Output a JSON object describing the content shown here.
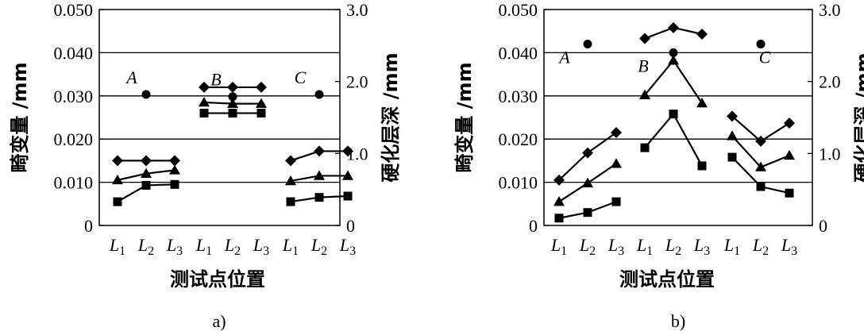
{
  "figure": {
    "chart_data": [
      {
        "type": "line",
        "caption": "a)",
        "xlabel": "测试点位置",
        "ylabel_left": "畸变量 /mm",
        "ylabel_right": "硬化层深 /mm",
        "ylim_left": [
          0,
          0.05
        ],
        "ylim_right": [
          0,
          3.0
        ],
        "yticks_left": [
          "0",
          "0.010",
          "0.020",
          "0.030",
          "0.040",
          "0.050"
        ],
        "yticks_right": [
          "0",
          "1.0",
          "2.0",
          "3.0"
        ],
        "grid": "horizontal",
        "groups": [
          {
            "label": "A",
            "categories": [
              "L1",
              "L2",
              "L3"
            ]
          },
          {
            "label": "B",
            "categories": [
              "L1",
              "L2",
              "L3"
            ]
          },
          {
            "label": "C",
            "categories": [
              "L1",
              "L2",
              "L3"
            ]
          }
        ],
        "series": [
          {
            "marker": "diamond",
            "axis": "left",
            "values": [
              [
                0.015,
                0.015,
                0.015
              ],
              [
                0.032,
                0.032,
                0.032
              ],
              [
                0.015,
                0.0172,
                0.0172
              ]
            ]
          },
          {
            "marker": "triangle",
            "axis": "left",
            "values": [
              [
                0.0105,
                0.012,
                0.0128
              ],
              [
                0.0285,
                0.0282,
                0.0282
              ],
              [
                0.0103,
                0.0115,
                0.0115
              ]
            ]
          },
          {
            "marker": "square",
            "axis": "left",
            "values": [
              [
                0.0055,
                0.0093,
                0.0095
              ],
              [
                0.026,
                0.026,
                0.026
              ],
              [
                0.0055,
                0.0065,
                0.0068
              ]
            ]
          },
          {
            "marker": "circle",
            "axis": "right",
            "values": [
              [
                null,
                1.82,
                null
              ],
              [
                null,
                1.79,
                null
              ],
              [
                null,
                1.82,
                null
              ]
            ]
          }
        ]
      },
      {
        "type": "line",
        "caption": "b)",
        "xlabel": "测试点位置",
        "ylabel_left": "畸变量 /mm",
        "ylabel_right": "硬化层深 /mm",
        "ylim_left": [
          0,
          0.05
        ],
        "ylim_right": [
          0,
          3.0
        ],
        "yticks_left": [
          "0",
          "0.010",
          "0.020",
          "0.030",
          "0.040",
          "0.050"
        ],
        "yticks_right": [
          "0",
          "1.0",
          "2.0",
          "3.0"
        ],
        "grid": "horizontal",
        "groups": [
          {
            "label": "A",
            "categories": [
              "L1",
              "L2",
              "L3"
            ]
          },
          {
            "label": "B",
            "categories": [
              "L1",
              "L2",
              "L3"
            ]
          },
          {
            "label": "C",
            "categories": [
              "L1",
              "L2",
              "L3"
            ]
          }
        ],
        "series": [
          {
            "marker": "diamond",
            "axis": "left",
            "values": [
              [
                0.0105,
                0.0168,
                0.0215
              ],
              [
                0.0433,
                0.0458,
                0.0443
              ],
              [
                0.0253,
                0.0195,
                0.0237
              ]
            ]
          },
          {
            "marker": "triangle",
            "axis": "left",
            "values": [
              [
                0.0055,
                0.0098,
                0.0143
              ],
              [
                0.0302,
                0.0382,
                0.0283
              ],
              [
                0.0207,
                0.0135,
                0.0162
              ]
            ]
          },
          {
            "marker": "square",
            "axis": "left",
            "values": [
              [
                0.0017,
                0.003,
                0.0055
              ],
              [
                0.018,
                0.0258,
                0.0138
              ],
              [
                0.0158,
                0.009,
                0.0075
              ]
            ]
          },
          {
            "marker": "circle",
            "axis": "right",
            "values": [
              [
                null,
                2.52,
                null
              ],
              [
                null,
                2.4,
                null
              ],
              [
                null,
                2.52,
                null
              ]
            ]
          }
        ]
      }
    ]
  }
}
